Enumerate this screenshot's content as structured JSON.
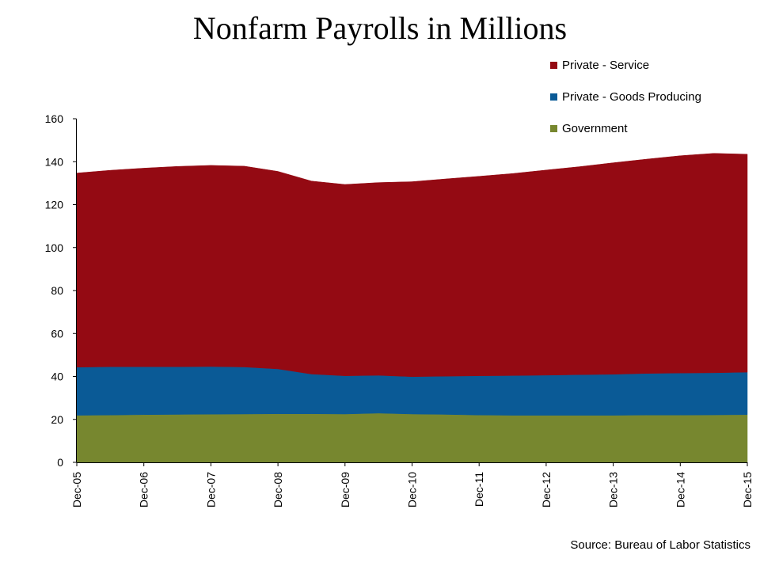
{
  "chart_data": {
    "type": "area",
    "title": "Nonfarm Payrolls in Millions",
    "source": "Source: Bureau of Labor Statistics",
    "stacked": true,
    "xlabel": "",
    "ylabel": "",
    "ylim": [
      0,
      160
    ],
    "yticks": [
      0,
      20,
      40,
      60,
      80,
      100,
      120,
      140,
      160
    ],
    "x": [
      0,
      0.5,
      1,
      1.5,
      2,
      2.5,
      3,
      3.5,
      4,
      4.5,
      5,
      5.5,
      6,
      6.5,
      7,
      7.5,
      8,
      8.5,
      9,
      9.5,
      10
    ],
    "x_tick_labels": [
      "Dec-05",
      "Dec-06",
      "Dec-07",
      "Dec-08",
      "Dec-09",
      "Dec-10",
      "Dec-11",
      "Dec-12",
      "Dec-13",
      "Dec-14",
      "Dec-15"
    ],
    "x_tick_positions": [
      0,
      1,
      2,
      3,
      4,
      5,
      6,
      7,
      8,
      9,
      10
    ],
    "series": [
      {
        "name": "Government",
        "color": "#77872f",
        "values": [
          21.9,
          22.0,
          22.2,
          22.3,
          22.4,
          22.5,
          22.6,
          22.6,
          22.5,
          22.9,
          22.5,
          22.3,
          22.0,
          21.9,
          21.9,
          21.9,
          21.9,
          22.0,
          22.0,
          22.1,
          22.2
        ]
      },
      {
        "name": "Private - Goods Producing",
        "color": "#0a5a96",
        "values": [
          22.4,
          22.5,
          22.3,
          22.2,
          22.2,
          21.9,
          20.9,
          18.5,
          17.8,
          17.6,
          17.4,
          17.8,
          18.3,
          18.5,
          18.7,
          18.9,
          19.1,
          19.4,
          19.6,
          19.6,
          19.8
        ]
      },
      {
        "name": "Private - Service",
        "color": "#940a13",
        "values": [
          90.4,
          91.5,
          92.5,
          93.3,
          93.7,
          93.5,
          92.0,
          89.9,
          89.1,
          89.8,
          90.8,
          91.9,
          92.9,
          94.1,
          95.5,
          96.9,
          98.5,
          99.8,
          101.2,
          102.2,
          101.5
        ]
      }
    ]
  }
}
